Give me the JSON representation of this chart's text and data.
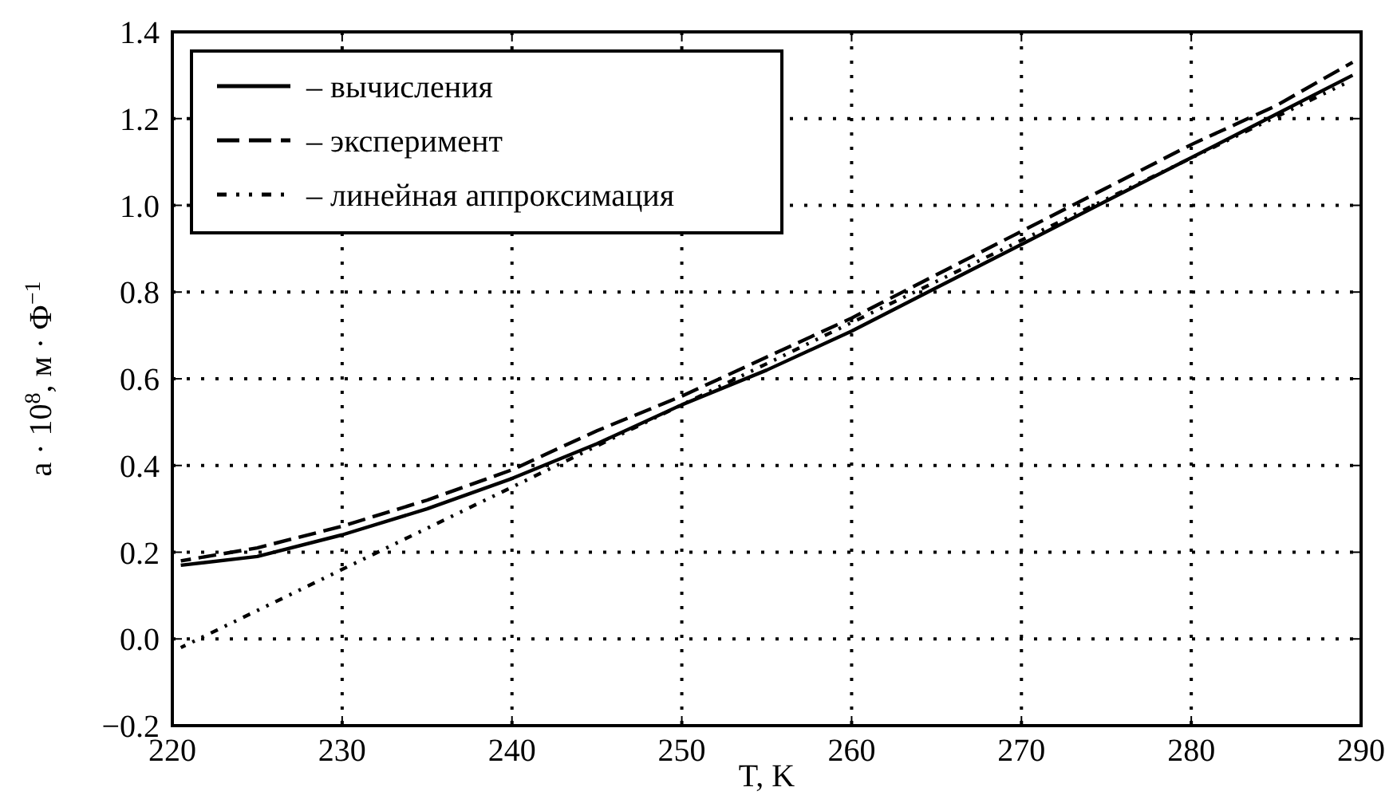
{
  "chart_data": {
    "type": "line",
    "xlabel": "T, K",
    "ylabel": "a · 10$^{8}$, м · Ф$^{−1}$",
    "xlim": [
      220,
      290
    ],
    "xticks": [
      220,
      230,
      240,
      250,
      260,
      270,
      280,
      290
    ],
    "ylim": [
      -0.2,
      1.4
    ],
    "yticks": [
      {
        "value": -0.2,
        "label": "−0.2"
      },
      {
        "value": 0,
        "label": "0.0"
      },
      {
        "value": 0.2,
        "label": "0.2"
      },
      {
        "value": 0.4,
        "label": "0.4"
      },
      {
        "value": 0.6,
        "label": "0.6"
      },
      {
        "value": 0.8,
        "label": "0.8"
      },
      {
        "value": 1,
        "label": "1.0"
      },
      {
        "value": 1.2,
        "label": "1.2"
      },
      {
        "value": 1.4,
        "label": "1.4"
      }
    ],
    "grid": true,
    "legend": "top left",
    "marker": "none",
    "series": [
      {
        "name": "– вычисления",
        "color": "#000000",
        "line_style": "solid",
        "x": [
          220.5,
          225,
          230,
          235,
          240,
          245,
          250,
          255,
          260,
          265,
          270,
          275,
          280,
          285,
          289.5
        ],
        "values": [
          0.17,
          0.19,
          0.24,
          0.3,
          0.37,
          0.45,
          0.54,
          0.62,
          0.71,
          0.81,
          0.91,
          1.01,
          1.11,
          1.21,
          1.3
        ]
      },
      {
        "name": "– эксперимент",
        "color": "#000000",
        "line_style": "dashed",
        "x": [
          220.5,
          225,
          230,
          235,
          240,
          245,
          250,
          255,
          260,
          265,
          270,
          275,
          280,
          285,
          289.5
        ],
        "values": [
          0.18,
          0.21,
          0.26,
          0.32,
          0.39,
          0.48,
          0.56,
          0.65,
          0.74,
          0.84,
          0.94,
          1.04,
          1.14,
          1.23,
          1.33
        ]
      },
      {
        "name": "– линейная аппроксимация",
        "color": "#000000",
        "line_style": "dotted",
        "x": [
          220.5,
          289
        ],
        "values": [
          -0.02,
          1.28
        ]
      }
    ]
  }
}
